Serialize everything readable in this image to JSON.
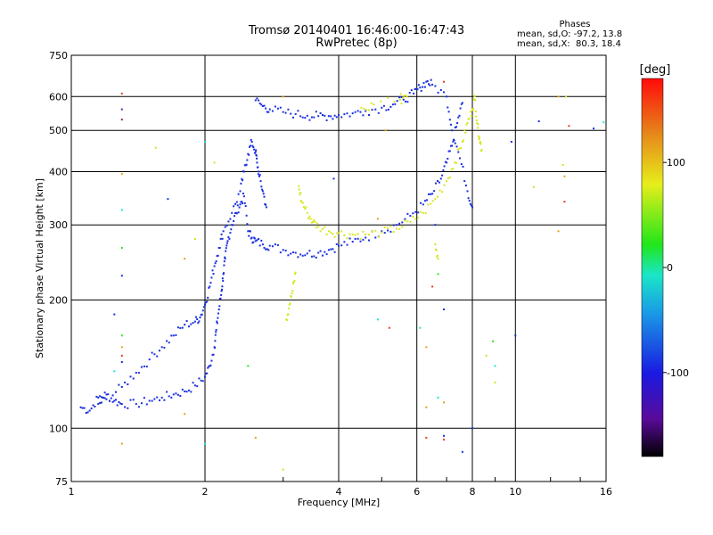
{
  "title_line1": "Tromsø 20140401 16:46:00-16:47:43",
  "title_line2": "RwPretec (8p)",
  "phase_box": {
    "title": "Phases",
    "line_o": "mean, sd,O: -97.2, 13.8",
    "line_x": "mean, sd,X:  80.3, 18.4"
  },
  "colorbar": {
    "label": "[deg]",
    "ticks": [
      "100",
      "0",
      "-100"
    ],
    "tick_values": [
      100,
      0,
      -100
    ],
    "range": [
      -180,
      180
    ]
  },
  "chart_data": {
    "type": "scatter",
    "xlabel": "Frequency [MHz]",
    "ylabel": "Stationary phase Virtual Height [km]",
    "xscale": "log",
    "yscale": "log",
    "xlim": [
      1,
      16
    ],
    "ylim": [
      75,
      750
    ],
    "x_ticks": [
      1,
      2,
      4,
      6,
      8,
      10,
      16
    ],
    "x_tick_labels": [
      "1",
      "2",
      "4",
      "6",
      "8",
      "10",
      "16"
    ],
    "y_ticks": [
      75,
      100,
      200,
      300,
      400,
      500,
      600,
      750
    ],
    "y_tick_labels": [
      "75",
      "100",
      "200",
      "300",
      "400",
      "500",
      "600",
      "750"
    ],
    "grid": true,
    "series": [
      {
        "color": "#1a2fe0",
        "mean_phase": -97.2,
        "points": [
          [
            1.05,
            112
          ],
          [
            1.1,
            110
          ],
          [
            1.15,
            118
          ],
          [
            1.2,
            120
          ],
          [
            1.25,
            116
          ],
          [
            1.3,
            114
          ],
          [
            1.4,
            114
          ],
          [
            1.5,
            116
          ],
          [
            1.6,
            118
          ],
          [
            1.7,
            120
          ],
          [
            1.8,
            122
          ],
          [
            1.9,
            126
          ],
          [
            2.0,
            132
          ],
          [
            2.05,
            140
          ],
          [
            2.1,
            155
          ],
          [
            2.12,
            170
          ],
          [
            2.15,
            190
          ],
          [
            2.18,
            210
          ],
          [
            2.2,
            230
          ],
          [
            2.22,
            250
          ],
          [
            2.25,
            275
          ],
          [
            2.3,
            300
          ],
          [
            2.35,
            320
          ],
          [
            2.4,
            335
          ],
          [
            2.45,
            350
          ],
          [
            2.5,
            290
          ],
          [
            2.55,
            280
          ],
          [
            2.6,
            275
          ],
          [
            2.7,
            270
          ],
          [
            2.8,
            268
          ],
          [
            3.0,
            262
          ],
          [
            3.2,
            258
          ],
          [
            3.4,
            257
          ],
          [
            3.6,
            258
          ],
          [
            3.8,
            262
          ],
          [
            4.0,
            268
          ],
          [
            4.3,
            274
          ],
          [
            4.6,
            280
          ],
          [
            5.0,
            290
          ],
          [
            5.4,
            300
          ],
          [
            5.8,
            315
          ],
          [
            6.2,
            335
          ],
          [
            6.5,
            355
          ],
          [
            6.8,
            385
          ],
          [
            7.0,
            420
          ],
          [
            7.2,
            460
          ],
          [
            7.4,
            520
          ],
          [
            7.6,
            580
          ],
          [
            1.15,
            114
          ],
          [
            1.2,
            117
          ],
          [
            1.3,
            125
          ],
          [
            1.4,
            135
          ],
          [
            1.5,
            145
          ],
          [
            1.6,
            155
          ],
          [
            1.7,
            165
          ],
          [
            1.8,
            175
          ],
          [
            1.9,
            178
          ],
          [
            1.95,
            182
          ],
          [
            2.0,
            195
          ],
          [
            2.05,
            215
          ],
          [
            2.1,
            240
          ],
          [
            2.15,
            265
          ],
          [
            2.2,
            290
          ],
          [
            2.3,
            320
          ],
          [
            2.4,
            360
          ],
          [
            2.45,
            400
          ],
          [
            2.5,
            440
          ],
          [
            2.55,
            470
          ],
          [
            2.6,
            445
          ],
          [
            2.62,
            420
          ],
          [
            2.65,
            390
          ],
          [
            2.7,
            360
          ],
          [
            2.75,
            330
          ],
          [
            2.6,
            588
          ],
          [
            2.7,
            570
          ],
          [
            2.8,
            560
          ],
          [
            3.0,
            552
          ],
          [
            3.2,
            546
          ],
          [
            3.4,
            541
          ],
          [
            3.6,
            540
          ],
          [
            3.8,
            540
          ],
          [
            4.0,
            543
          ],
          [
            4.3,
            548
          ],
          [
            4.6,
            555
          ],
          [
            5.0,
            565
          ],
          [
            5.3,
            575
          ],
          [
            5.6,
            590
          ],
          [
            5.9,
            610
          ],
          [
            6.1,
            630
          ],
          [
            6.3,
            650
          ],
          [
            6.5,
            640
          ],
          [
            7.0,
            600
          ],
          [
            7.2,
            500
          ],
          [
            7.5,
            430
          ],
          [
            7.8,
            360
          ],
          [
            8.0,
            330
          ]
        ]
      },
      {
        "color": "#d6e61e",
        "mean_phase": 80.3,
        "points": [
          [
            3.05,
            180
          ],
          [
            3.1,
            195
          ],
          [
            3.15,
            210
          ],
          [
            3.2,
            232
          ],
          [
            3.25,
            370
          ],
          [
            3.3,
            340
          ],
          [
            3.4,
            320
          ],
          [
            3.5,
            305
          ],
          [
            3.6,
            297
          ],
          [
            3.8,
            290
          ],
          [
            4.0,
            287
          ],
          [
            4.3,
            285
          ],
          [
            4.6,
            285
          ],
          [
            5.0,
            288
          ],
          [
            5.4,
            294
          ],
          [
            5.8,
            305
          ],
          [
            6.2,
            320
          ],
          [
            6.6,
            345
          ],
          [
            7.0,
            380
          ],
          [
            7.3,
            420
          ],
          [
            7.6,
            470
          ],
          [
            7.8,
            520
          ],
          [
            8.0,
            560
          ],
          [
            8.1,
            600
          ],
          [
            8.2,
            520
          ],
          [
            8.3,
            480
          ],
          [
            8.4,
            450
          ],
          [
            6.6,
            270
          ],
          [
            6.7,
            250
          ],
          [
            5.5,
            590
          ],
          [
            5.7,
            600
          ],
          [
            4.8,
            575
          ],
          [
            4.5,
            565
          ]
        ]
      }
    ],
    "scattered_points": [
      {
        "x": 1.3,
        "y": 610,
        "color": "#e63c1a"
      },
      {
        "x": 1.3,
        "y": 560,
        "color": "#6a1aa0"
      },
      {
        "x": 1.3,
        "y": 530,
        "color": "#a01a6a"
      },
      {
        "x": 1.55,
        "y": 455,
        "color": "#c8e620"
      },
      {
        "x": 1.65,
        "y": 345,
        "color": "#1a2fe0"
      },
      {
        "x": 1.3,
        "y": 395,
        "color": "#e6a01a"
      },
      {
        "x": 1.3,
        "y": 325,
        "color": "#1ae6d2"
      },
      {
        "x": 1.3,
        "y": 265,
        "color": "#2ae61a"
      },
      {
        "x": 1.3,
        "y": 228,
        "color": "#1a2fe0"
      },
      {
        "x": 1.25,
        "y": 185,
        "color": "#1a2fe0"
      },
      {
        "x": 1.3,
        "y": 165,
        "color": "#2ae61a"
      },
      {
        "x": 1.3,
        "y": 155,
        "color": "#e6a01a"
      },
      {
        "x": 1.3,
        "y": 148,
        "color": "#e63c1a"
      },
      {
        "x": 1.3,
        "y": 143,
        "color": "#1a2fe0"
      },
      {
        "x": 1.25,
        "y": 136,
        "color": "#1ae6d2"
      },
      {
        "x": 1.8,
        "y": 108,
        "color": "#e6a01a"
      },
      {
        "x": 1.3,
        "y": 92,
        "color": "#e6a01a"
      },
      {
        "x": 2.0,
        "y": 92,
        "color": "#1ae6d2"
      },
      {
        "x": 2.6,
        "y": 95,
        "color": "#e6a01a"
      },
      {
        "x": 3.0,
        "y": 80,
        "color": "#c8e620"
      },
      {
        "x": 6.3,
        "y": 95,
        "color": "#e63c1a"
      },
      {
        "x": 6.9,
        "y": 94,
        "color": "#e63c1a"
      },
      {
        "x": 7.6,
        "y": 88,
        "color": "#1a2fe0"
      },
      {
        "x": 6.9,
        "y": 96,
        "color": "#1a2fe0"
      },
      {
        "x": 6.3,
        "y": 112,
        "color": "#e6a01a"
      },
      {
        "x": 6.7,
        "y": 118,
        "color": "#1ae6d2"
      },
      {
        "x": 6.9,
        "y": 115,
        "color": "#e6a01a"
      },
      {
        "x": 6.3,
        "y": 155,
        "color": "#e6a01a"
      },
      {
        "x": 6.1,
        "y": 172,
        "color": "#1ae6d2"
      },
      {
        "x": 5.2,
        "y": 172,
        "color": "#e63c1a"
      },
      {
        "x": 6.5,
        "y": 215,
        "color": "#e63c1a"
      },
      {
        "x": 6.7,
        "y": 230,
        "color": "#2ae61a"
      },
      {
        "x": 6.9,
        "y": 190,
        "color": "#1a2fe0"
      },
      {
        "x": 8.6,
        "y": 148,
        "color": "#c8e620"
      },
      {
        "x": 8.9,
        "y": 160,
        "color": "#2ae61a"
      },
      {
        "x": 9.0,
        "y": 140,
        "color": "#1ae6d2"
      },
      {
        "x": 9.0,
        "y": 128,
        "color": "#c8e620"
      },
      {
        "x": 10.0,
        "y": 165,
        "color": "#1a2fe0"
      },
      {
        "x": 8.0,
        "y": 100,
        "color": "#1a2fe0"
      },
      {
        "x": 9.8,
        "y": 470,
        "color": "#1a2fe0"
      },
      {
        "x": 11.3,
        "y": 525,
        "color": "#1a2fe0"
      },
      {
        "x": 12.5,
        "y": 600,
        "color": "#e6a01a"
      },
      {
        "x": 13.0,
        "y": 600,
        "color": "#c8e620"
      },
      {
        "x": 13.2,
        "y": 512,
        "color": "#e63c1a"
      },
      {
        "x": 15.0,
        "y": 505,
        "color": "#1a2fe0"
      },
      {
        "x": 15.8,
        "y": 522,
        "color": "#1ae6d2"
      },
      {
        "x": 12.8,
        "y": 415,
        "color": "#c8e620"
      },
      {
        "x": 12.9,
        "y": 390,
        "color": "#e6a01a"
      },
      {
        "x": 12.9,
        "y": 340,
        "color": "#e63c1a"
      },
      {
        "x": 12.5,
        "y": 290,
        "color": "#e6a01a"
      },
      {
        "x": 11.0,
        "y": 368,
        "color": "#c8e620"
      },
      {
        "x": 6.9,
        "y": 650,
        "color": "#e63c1a"
      },
      {
        "x": 5.1,
        "y": 500,
        "color": "#e6a01a"
      },
      {
        "x": 3.9,
        "y": 385,
        "color": "#1a2fe0"
      },
      {
        "x": 2.0,
        "y": 470,
        "color": "#1ae6d2"
      },
      {
        "x": 2.1,
        "y": 420,
        "color": "#c8e620"
      },
      {
        "x": 1.9,
        "y": 278,
        "color": "#c8e620"
      },
      {
        "x": 1.8,
        "y": 250,
        "color": "#e6a01a"
      },
      {
        "x": 4.9,
        "y": 310,
        "color": "#e6a01a"
      },
      {
        "x": 6.6,
        "y": 300,
        "color": "#1a2fe0"
      },
      {
        "x": 3.0,
        "y": 600,
        "color": "#e6a01a"
      },
      {
        "x": 4.9,
        "y": 180,
        "color": "#1ae6d2"
      },
      {
        "x": 2.5,
        "y": 140,
        "color": "#2ae61a"
      }
    ]
  }
}
